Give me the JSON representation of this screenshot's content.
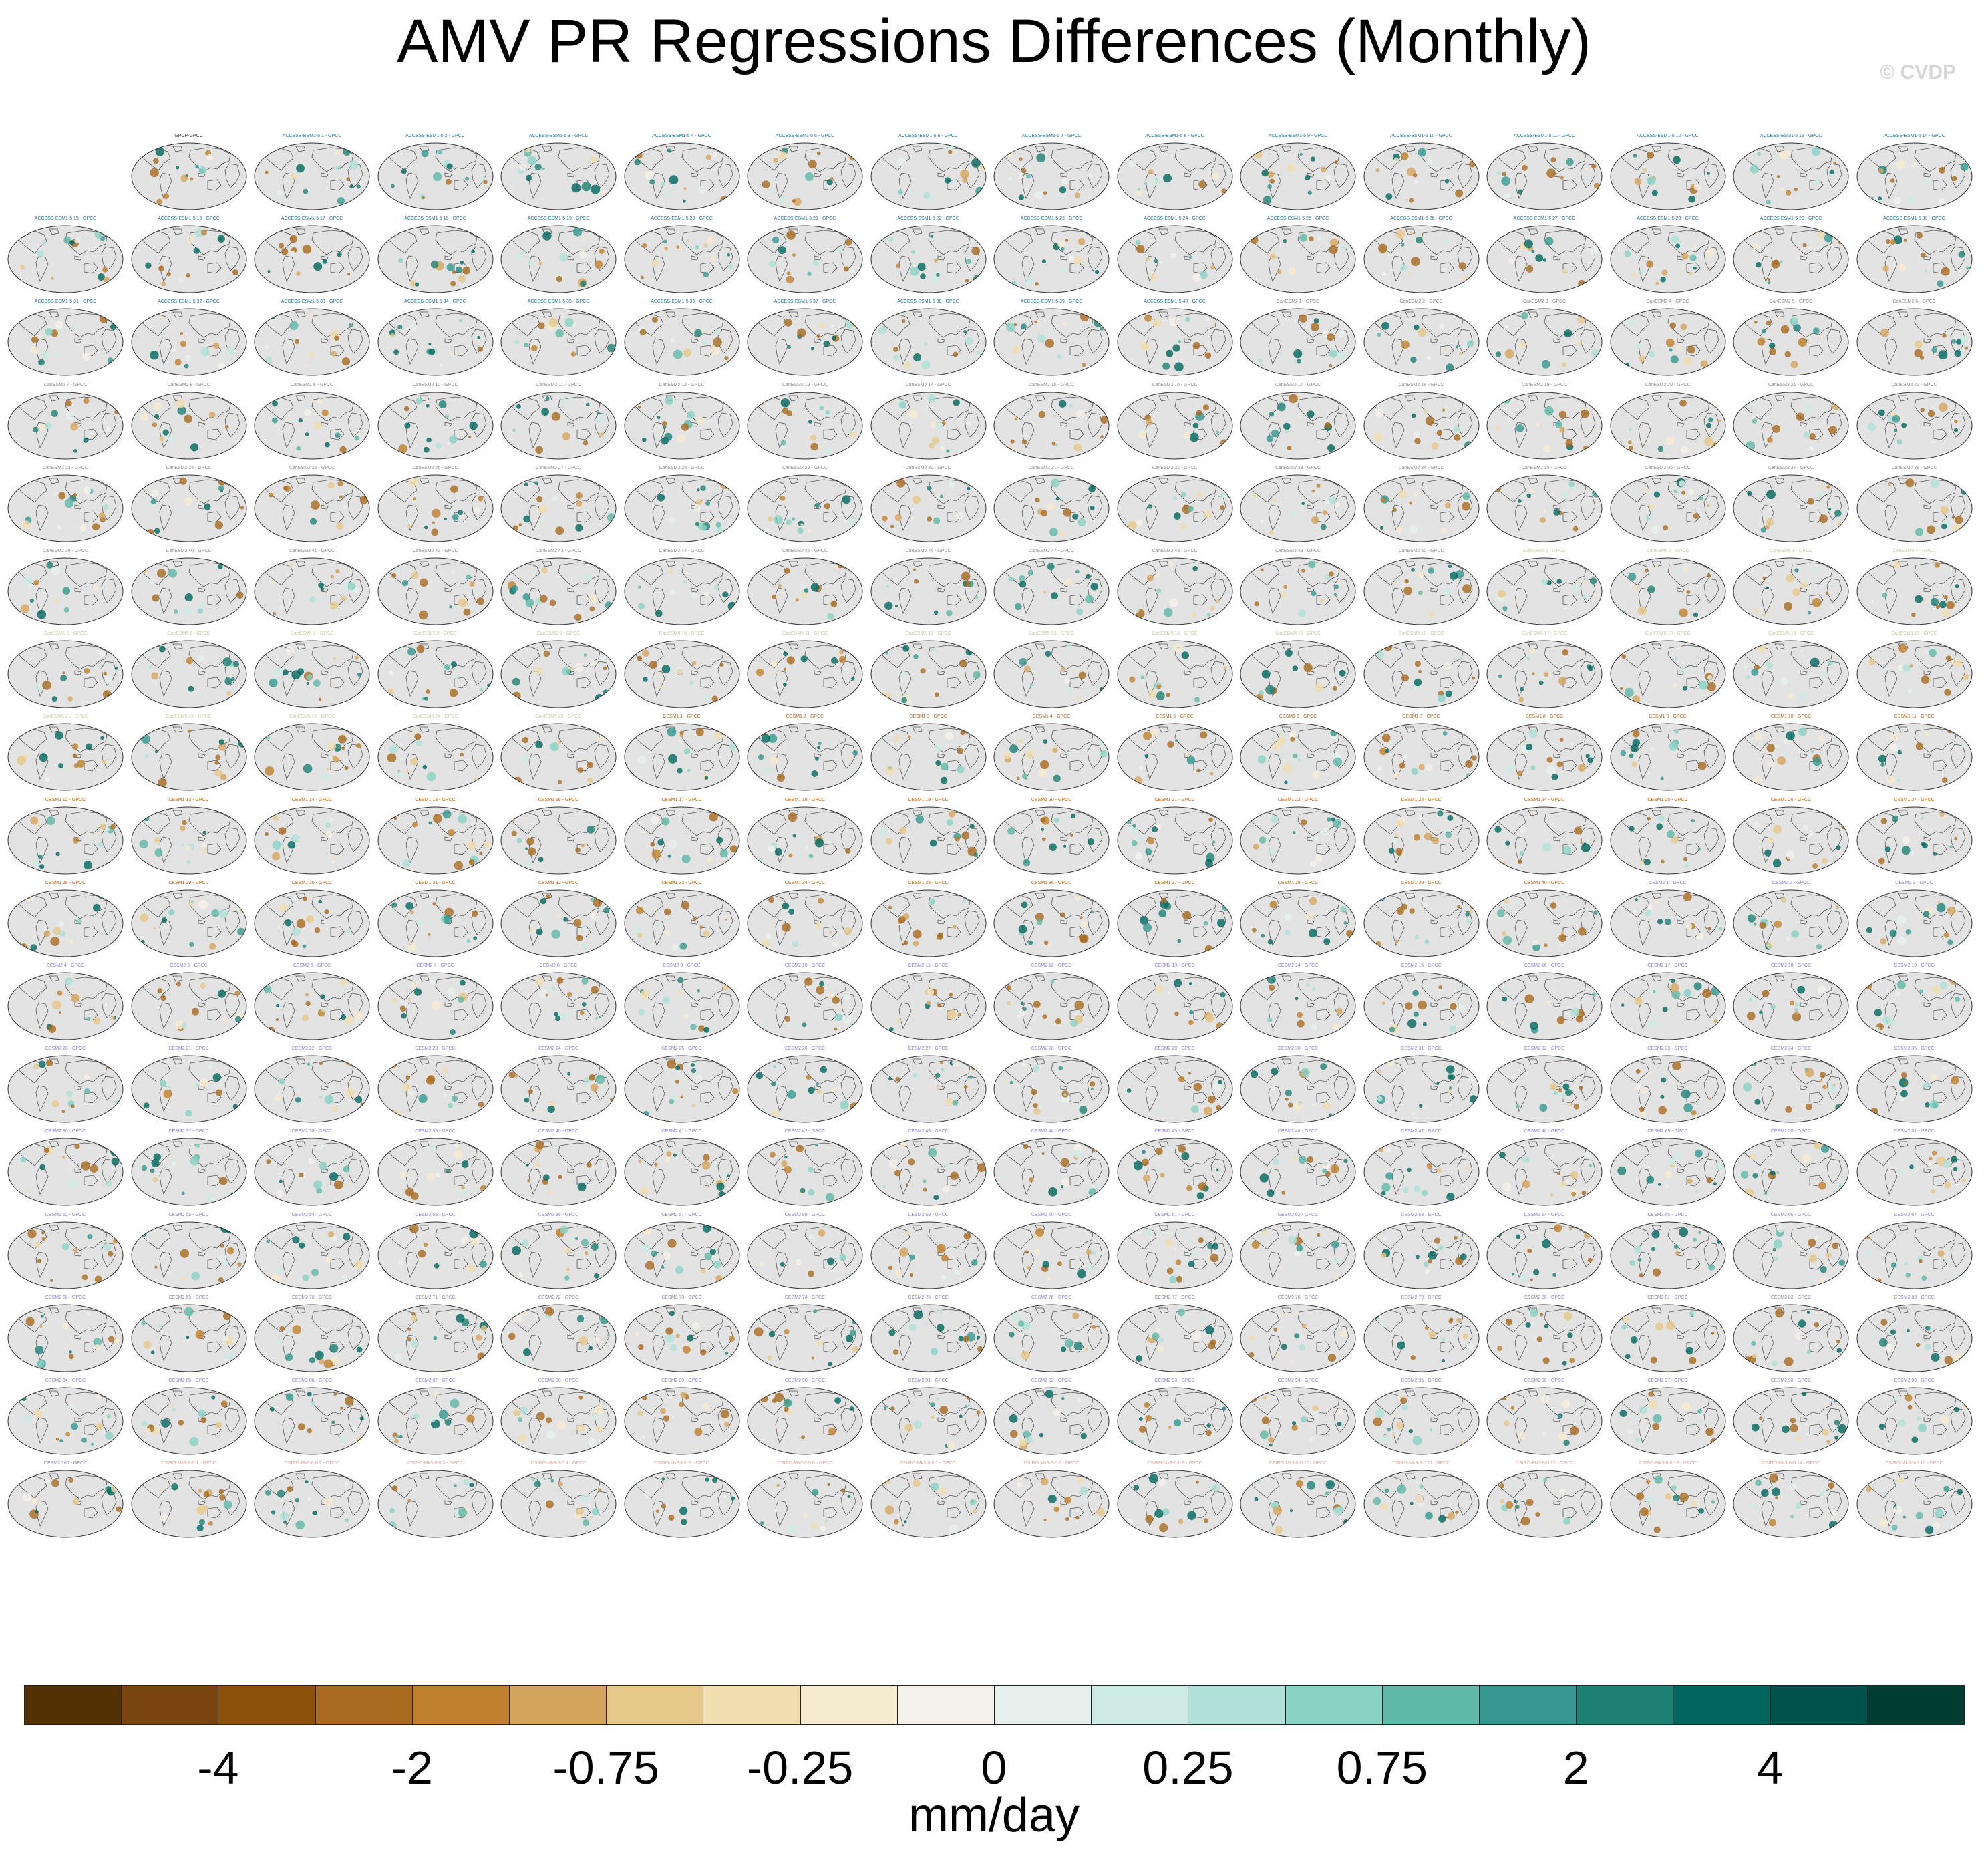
{
  "title": "AMV PR Regressions Differences (Monthly)",
  "watermark": "© CVDP",
  "panel_groups": [
    {
      "prefix": "GPCP-GPCC",
      "color": "#333333",
      "count": 1
    },
    {
      "prefix": "ACCESS-ESM1-5",
      "color": "#2a6f8f",
      "count": 40
    },
    {
      "prefix": "CanESM2",
      "color": "#8a8a8a",
      "count": 50
    },
    {
      "prefix": "CanESM5",
      "color": "#c8c8a0",
      "count": 25
    },
    {
      "prefix": "CESM1",
      "color": "#b5651d",
      "count": 40
    },
    {
      "prefix": "CESM2",
      "color": "#8a7fd0",
      "count": 100
    },
    {
      "prefix": "CSIRO-Mk3-6-0",
      "color": "#d8a0a0",
      "count": 15
    }
  ],
  "chart_data": {
    "type": "map-panel-grid",
    "title": "AMV PR Regressions Differences (Monthly)",
    "panel_count": 271,
    "reference": "GPCC",
    "colorbar": {
      "units": "mm/day",
      "tick_labels": [
        "-4",
        "-2",
        "-0.75",
        "-0.25",
        "0",
        "0.25",
        "0.75",
        "2",
        "4"
      ],
      "tick_box_index": [
        2,
        4,
        6,
        8,
        10,
        12,
        14,
        16,
        18
      ],
      "colors": [
        "#543005",
        "#7a4410",
        "#8c510a",
        "#a86a1f",
        "#bf812d",
        "#d4a55c",
        "#e6c88a",
        "#f0ddb0",
        "#f5ebcf",
        "#f5f1ec",
        "#e8f0ee",
        "#cdeae4",
        "#b0e0d8",
        "#8ad2c3",
        "#5fb8a8",
        "#35978f",
        "#1e7f73",
        "#01665e",
        "#00524a",
        "#003c30"
      ]
    }
  }
}
